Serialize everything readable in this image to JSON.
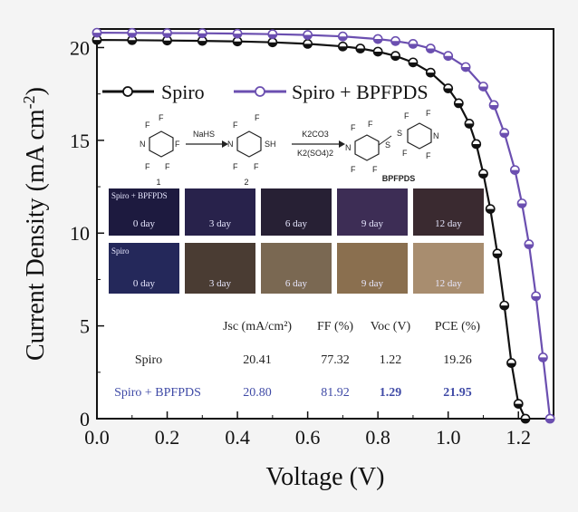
{
  "chart_data": {
    "type": "line",
    "xlabel": "Voltage (V)",
    "ylabel": "Current Density (mA cm",
    "ylabel_sup": "-2",
    "ylabel_close": ")",
    "xlim": [
      0.0,
      1.3
    ],
    "ylim": [
      0,
      21
    ],
    "x_ticks": [
      "0.0",
      "0.2",
      "0.4",
      "0.6",
      "0.8",
      "1.0",
      "1.2"
    ],
    "y_ticks": [
      "0",
      "5",
      "10",
      "15",
      "20"
    ],
    "legend_position": "top-left",
    "series": [
      {
        "name": "Spiro",
        "color": "#111111",
        "marker": "half-filled circle",
        "x": [
          0.0,
          0.1,
          0.2,
          0.3,
          0.4,
          0.5,
          0.6,
          0.7,
          0.75,
          0.8,
          0.85,
          0.9,
          0.95,
          1.0,
          1.03,
          1.06,
          1.08,
          1.1,
          1.12,
          1.14,
          1.16,
          1.18,
          1.2,
          1.22
        ],
        "y": [
          20.41,
          20.4,
          20.38,
          20.36,
          20.33,
          20.28,
          20.2,
          20.06,
          19.95,
          19.78,
          19.55,
          19.2,
          18.65,
          17.8,
          17.0,
          15.9,
          14.8,
          13.2,
          11.3,
          8.9,
          6.1,
          3.0,
          0.8,
          0.0
        ]
      },
      {
        "name": "Spiro + BPFPDS",
        "color": "#6b4fb0",
        "marker": "half-filled circle",
        "x": [
          0.0,
          0.1,
          0.2,
          0.3,
          0.4,
          0.5,
          0.6,
          0.7,
          0.8,
          0.85,
          0.9,
          0.95,
          1.0,
          1.05,
          1.1,
          1.13,
          1.16,
          1.19,
          1.21,
          1.23,
          1.25,
          1.27,
          1.29
        ],
        "y": [
          20.8,
          20.79,
          20.78,
          20.77,
          20.75,
          20.72,
          20.68,
          20.6,
          20.46,
          20.35,
          20.2,
          19.95,
          19.55,
          18.95,
          17.9,
          16.9,
          15.4,
          13.4,
          11.6,
          9.4,
          6.6,
          3.3,
          0.0
        ]
      }
    ]
  },
  "inset_scheme": {
    "reagent1": "NaHS",
    "reagent2a": "K2CO3",
    "reagent2b": "K2(SO4)2",
    "label_1": "1",
    "label_2": "2",
    "product_label": "BPFPDS"
  },
  "inset_photos": {
    "row1_tag": "Spiro + BPFPDS",
    "row2_tag": "Spiro",
    "days": [
      "0 day",
      "3 day",
      "6 day",
      "9 day",
      "12 day"
    ]
  },
  "inset_table": {
    "headers": [
      "Jsc (mA/cm²)",
      "FF (%)",
      "Voc (V)",
      "PCE (%)"
    ],
    "rows": [
      {
        "label": "Spiro",
        "jsc": "20.41",
        "ff": "77.32",
        "voc": "1.22",
        "pce": "19.26"
      },
      {
        "label": "Spiro + BPFPDS",
        "jsc": "20.80",
        "ff": "81.92",
        "voc": "1.29",
        "pce": "21.95"
      }
    ]
  }
}
